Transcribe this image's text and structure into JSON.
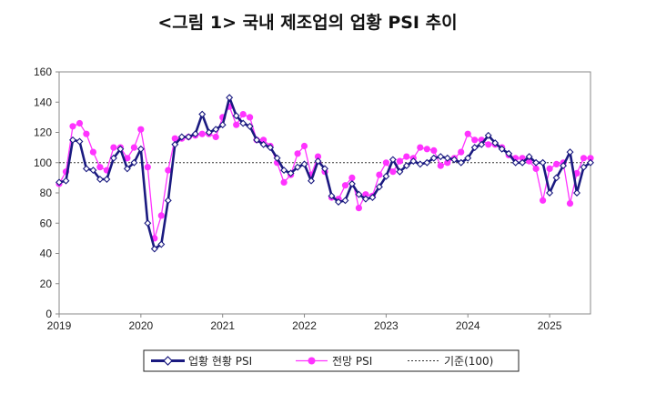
{
  "figure": {
    "title": "<그림 1> 국내 제조업의 업황 PSI 추이"
  },
  "chart_data": {
    "type": "line",
    "title": "<그림 1> 국내 제조업의 업황 PSI 추이",
    "xlabel": "",
    "ylabel": "",
    "ylim": [
      0,
      160
    ],
    "yticks": [
      "0",
      "20",
      "40",
      "60",
      "80",
      "100",
      "120",
      "140",
      "160"
    ],
    "xticks": [
      {
        "label": "2019",
        "x": 2019.0
      },
      {
        "label": "2020",
        "x": 2020.0
      },
      {
        "label": "2021",
        "x": 2021.0
      },
      {
        "label": "2022",
        "x": 2022.0
      },
      {
        "label": "2023",
        "x": 2023.0
      },
      {
        "label": "2024",
        "x": 2024.0
      },
      {
        "label": "2025",
        "x": 2025.0
      }
    ],
    "grid": false,
    "legend_position": "bottom-center",
    "reference_line": {
      "name": "기준(100)",
      "value": 100
    },
    "series": [
      {
        "name": "업황 현황 PSI",
        "color": "#1a1a80",
        "marker": "diamond",
        "x": [
          2019.0,
          2019.0833,
          2019.1667,
          2019.25,
          2019.3333,
          2019.4167,
          2019.5,
          2019.5833,
          2019.6667,
          2019.75,
          2019.8333,
          2019.9167,
          2020.0,
          2020.0833,
          2020.1667,
          2020.25,
          2020.3333,
          2020.4167,
          2020.5,
          2020.5833,
          2020.6667,
          2020.75,
          2020.8333,
          2020.9167,
          2021.0,
          2021.0833,
          2021.1667,
          2021.25,
          2021.3333,
          2021.4167,
          2021.5,
          2021.5833,
          2021.6667,
          2021.75,
          2021.8333,
          2021.9167,
          2022.0,
          2022.0833,
          2022.1667,
          2022.25,
          2022.3333,
          2022.4167,
          2022.5,
          2022.5833,
          2022.6667,
          2022.75,
          2022.8333,
          2022.9167,
          2023.0,
          2023.0833,
          2023.1667,
          2023.25,
          2023.3333,
          2023.4167,
          2023.5,
          2023.5833,
          2023.6667,
          2023.75,
          2023.8333,
          2023.9167,
          2024.0,
          2024.0833,
          2024.1667,
          2024.25,
          2024.3333,
          2024.4167,
          2024.5,
          2024.5833,
          2024.6667,
          2024.75,
          2024.8333,
          2024.9167,
          2025.0,
          2025.0833,
          2025.1667,
          2025.25,
          2025.3333,
          2025.4167,
          2025.5
        ],
        "y": [
          87,
          88,
          115,
          114,
          96,
          95,
          89,
          89,
          103,
          109,
          96,
          100,
          109,
          60,
          43,
          46,
          75,
          112,
          117,
          117,
          119,
          132,
          120,
          122,
          125,
          143,
          131,
          126,
          124,
          115,
          112,
          110,
          103,
          95,
          93,
          97,
          99,
          88,
          101,
          96,
          78,
          74,
          75,
          86,
          79,
          76,
          77,
          84,
          91,
          102,
          94,
          98,
          101,
          99,
          100,
          103,
          104,
          103,
          102,
          100,
          103,
          110,
          112,
          118,
          113,
          109,
          106,
          100,
          100,
          104,
          100,
          100,
          80,
          90,
          98,
          107,
          80,
          97,
          100
        ],
        "y_reference": 100
      },
      {
        "name": "전망 PSI",
        "color": "#ff33ff",
        "marker": "circle",
        "x": [
          2019.0,
          2019.0833,
          2019.1667,
          2019.25,
          2019.3333,
          2019.4167,
          2019.5,
          2019.5833,
          2019.6667,
          2019.75,
          2019.8333,
          2019.9167,
          2020.0,
          2020.0833,
          2020.1667,
          2020.25,
          2020.3333,
          2020.4167,
          2020.5,
          2020.5833,
          2020.6667,
          2020.75,
          2020.8333,
          2020.9167,
          2021.0,
          2021.0833,
          2021.1667,
          2021.25,
          2021.3333,
          2021.4167,
          2021.5,
          2021.5833,
          2021.6667,
          2021.75,
          2021.8333,
          2021.9167,
          2022.0,
          2022.0833,
          2022.1667,
          2022.25,
          2022.3333,
          2022.4167,
          2022.5,
          2022.5833,
          2022.6667,
          2022.75,
          2022.8333,
          2022.9167,
          2023.0,
          2023.0833,
          2023.1667,
          2023.25,
          2023.3333,
          2023.4167,
          2023.5,
          2023.5833,
          2023.6667,
          2023.75,
          2023.8333,
          2023.9167,
          2024.0,
          2024.0833,
          2024.1667,
          2024.25,
          2024.3333,
          2024.4167,
          2024.5,
          2024.5833,
          2024.6667,
          2024.75,
          2024.8333,
          2024.9167,
          2025.0,
          2025.0833,
          2025.1667,
          2025.25,
          2025.3333,
          2025.4167,
          2025.5
        ],
        "y": [
          86,
          94,
          124,
          126,
          119,
          107,
          97,
          95,
          110,
          110,
          103,
          110,
          122,
          97,
          50,
          65,
          95,
          116,
          116,
          117,
          118,
          119,
          119,
          117,
          130,
          137,
          125,
          132,
          130,
          115,
          115,
          111,
          100,
          87,
          92,
          106,
          111,
          92,
          104,
          94,
          77,
          76,
          85,
          90,
          70,
          79,
          78,
          92,
          100,
          94,
          101,
          104,
          103,
          110,
          109,
          108,
          98,
          100,
          103,
          107,
          119,
          115,
          115,
          112,
          112,
          110,
          105,
          103,
          103,
          101,
          96,
          75,
          96,
          99,
          100,
          73,
          93,
          103,
          103
        ]
      }
    ]
  }
}
